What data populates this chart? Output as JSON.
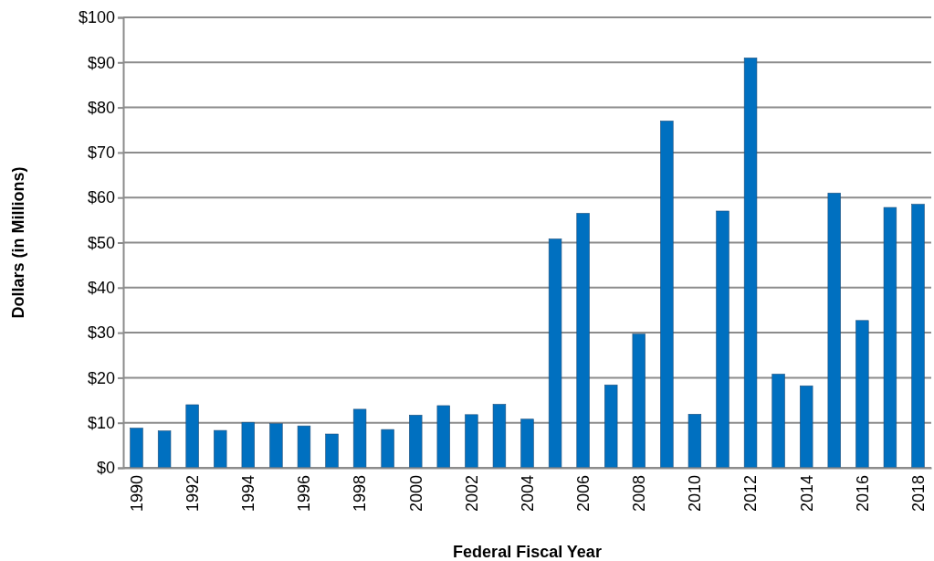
{
  "chart_data": {
    "type": "bar",
    "xlabel": "Federal Fiscal Year",
    "ylabel": "Dollars (in Millions)",
    "categories": [
      "1990",
      null,
      "1992",
      null,
      "1994",
      null,
      "1996",
      null,
      "1998",
      null,
      "2000",
      null,
      "2002",
      null,
      "2004",
      null,
      "2006",
      null,
      "2008",
      null,
      "2010",
      null,
      "2012",
      null,
      "2014",
      null,
      "2016",
      null,
      "2018"
    ],
    "values": [
      8.8,
      8.2,
      14,
      8.3,
      10.1,
      9.8,
      9.3,
      7.5,
      13,
      8.5,
      11.7,
      13.8,
      11.8,
      14.1,
      10.8,
      50.8,
      56.5,
      18.4,
      29.7,
      77,
      11.9,
      57,
      91,
      20.8,
      18.2,
      61,
      32.7,
      57.8,
      58.5
    ],
    "color": "#0070c0",
    "ylim": [
      0,
      100
    ],
    "yticks": [
      {
        "value": 0,
        "label": "$0"
      },
      {
        "value": 10,
        "label": "$10"
      },
      {
        "value": 20,
        "label": "$20"
      },
      {
        "value": 30,
        "label": "$30"
      },
      {
        "value": 40,
        "label": "$40"
      },
      {
        "value": 50,
        "label": "$50"
      },
      {
        "value": 60,
        "label": "$60"
      },
      {
        "value": 70,
        "label": "$70"
      },
      {
        "value": 80,
        "label": "$80"
      },
      {
        "value": 90,
        "label": "$90"
      },
      {
        "value": 100,
        "label": "$100"
      }
    ],
    "grid": "y"
  }
}
